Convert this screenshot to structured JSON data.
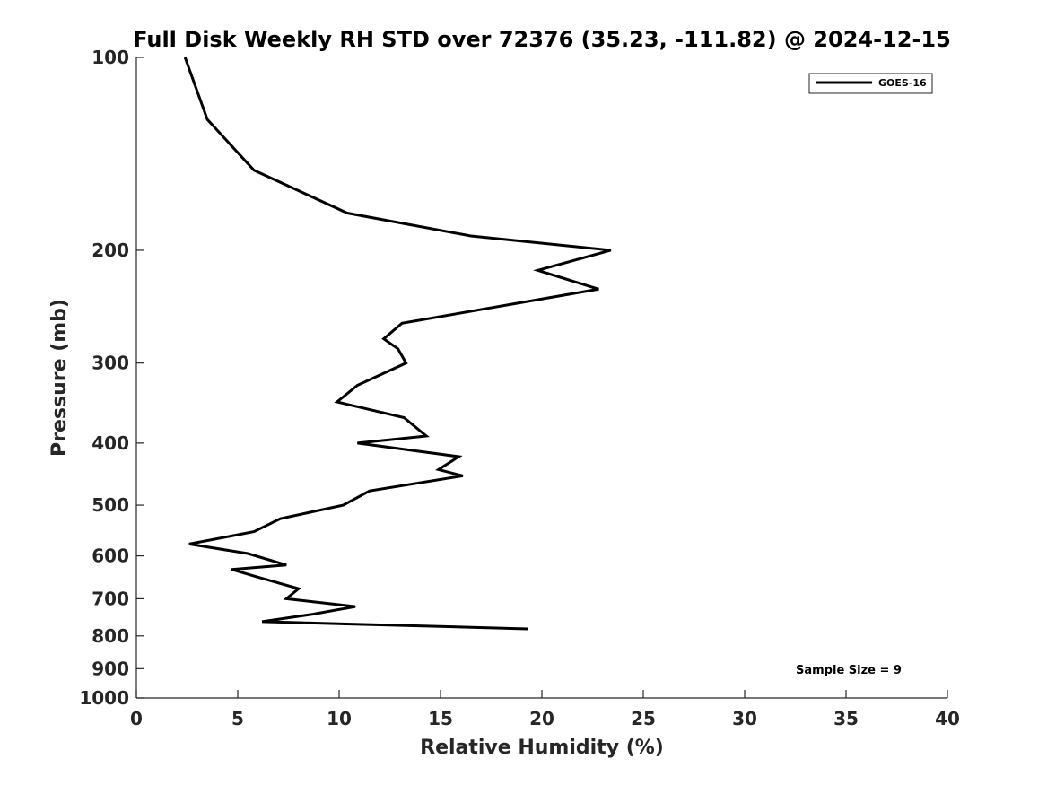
{
  "chart_data": {
    "type": "line",
    "title": "Full Disk Weekly RH STD over 72376 (35.23, -111.82) @ 2024-12-15",
    "xlabel": "Relative Humidity (%)",
    "ylabel": "Pressure (mb)",
    "xlim": [
      0,
      40
    ],
    "ylim": [
      100,
      1000
    ],
    "yscale": "log",
    "y_reversed": true,
    "x_ticks": [
      0,
      5,
      10,
      15,
      20,
      25,
      30,
      35,
      40
    ],
    "y_ticks": [
      100,
      200,
      300,
      400,
      500,
      600,
      700,
      800,
      900,
      1000
    ],
    "grid": false,
    "legend_position": "top-right",
    "annotation": "Sample Size = 9",
    "series": [
      {
        "name": "GOES-16",
        "color": "#000000",
        "x": [
          2.4,
          3.5,
          5.8,
          10.4,
          16.5,
          23.4,
          19.8,
          22.8,
          13.1,
          12.2,
          12.9,
          13.3,
          10.9,
          9.9,
          13.2,
          14.3,
          10.9,
          15.9,
          14.9,
          16.1,
          11.5,
          10.2,
          7.1,
          5.8,
          2.6,
          5.5,
          7.4,
          4.7,
          5.8,
          8.0,
          7.4,
          10.8,
          8.7,
          6.2,
          19.3
        ],
        "y": [
          100,
          125,
          150,
          175,
          190,
          200,
          215,
          230,
          260,
          275,
          285,
          300,
          325,
          345,
          365,
          390,
          400,
          420,
          440,
          450,
          475,
          500,
          525,
          550,
          575,
          595,
          620,
          630,
          645,
          675,
          700,
          720,
          740,
          760,
          780
        ]
      }
    ]
  }
}
